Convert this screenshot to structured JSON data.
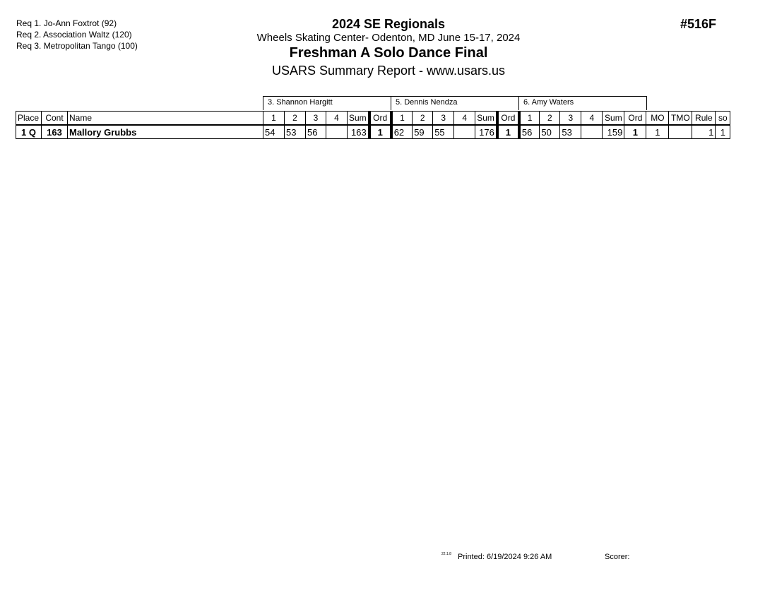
{
  "requirements": [
    "Req  1.  Jo-Ann Foxtrot (92)",
    "Req  2.  Association Waltz (120)",
    "Req  3.  Metropolitan Tango (100)"
  ],
  "header": {
    "event": "2024 SE Regionals",
    "venue": "Wheels Skating Center- Odenton, MD  June 15-17, 2024",
    "title": "Freshman A Solo Dance Final",
    "subtitle": "USARS Summary Report - www.usars.us",
    "number": "#516F"
  },
  "judges": [
    "3.  Shannon Hargitt",
    "5.  Dennis Nendza",
    "6.  Amy Waters"
  ],
  "columns": {
    "place": "Place",
    "cont": "Cont",
    "name": "Name",
    "s1": "1",
    "s2": "2",
    "s3": "3",
    "s4": "4",
    "sum": "Sum",
    "ord": "Ord",
    "mo": "MO",
    "tmo": "TMO",
    "rule": "Rule",
    "so": "so"
  },
  "rows": [
    {
      "place": "1 Q",
      "cont": "163",
      "name": "Mallory Grubbs",
      "scores": [
        {
          "s1": "54",
          "s2": "53",
          "s3": "56",
          "s4": "",
          "sum": "163",
          "ord": "1"
        },
        {
          "s1": "62",
          "s2": "59",
          "s3": "55",
          "s4": "",
          "sum": "176",
          "ord": "1"
        },
        {
          "s1": "56",
          "s2": "50",
          "s3": "53",
          "s4": "",
          "sum": "159",
          "ord": "1"
        }
      ],
      "mo": "1",
      "tmo": "",
      "rule": "1",
      "so": "1"
    }
  ],
  "footer": {
    "version": "22.1.8",
    "printed": "Printed:  6/19/2024  9:26 AM",
    "scorer": "Scorer:"
  }
}
